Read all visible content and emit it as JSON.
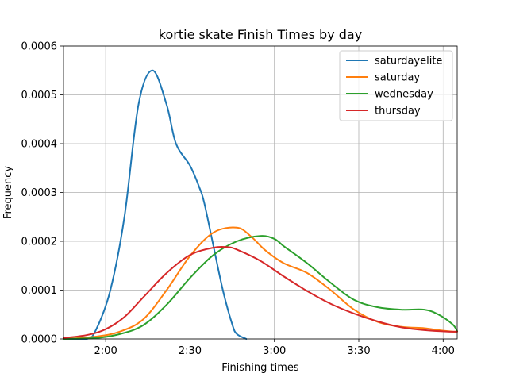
{
  "chart_data": {
    "type": "line",
    "title": "kortie skate Finish Times by day",
    "xlabel": "Finishing times",
    "ylabel": "Frequency",
    "x_unit": "seconds",
    "xlim": [
      6300,
      14700
    ],
    "ylim": [
      0,
      0.0006
    ],
    "grid": true,
    "legend_position": "upper right",
    "xticks": [
      {
        "value": 7200,
        "label": "2:00"
      },
      {
        "value": 9000,
        "label": "2:30"
      },
      {
        "value": 10800,
        "label": "3:00"
      },
      {
        "value": 12600,
        "label": "3:30"
      },
      {
        "value": 14400,
        "label": "4:00"
      }
    ],
    "yticks": [
      {
        "value": 0.0,
        "label": "0.0000"
      },
      {
        "value": 0.0001,
        "label": "0.0001"
      },
      {
        "value": 0.0002,
        "label": "0.0002"
      },
      {
        "value": 0.0003,
        "label": "0.0003"
      },
      {
        "value": 0.0004,
        "label": "0.0004"
      },
      {
        "value": 0.0005,
        "label": "0.0005"
      },
      {
        "value": 0.0006,
        "label": "0.0006"
      }
    ],
    "series": [
      {
        "name": "saturdayelite",
        "color": "#1f77b4",
        "x": [
          6300,
          6800,
          7000,
          7300,
          7600,
          7900,
          8200,
          8500,
          8700,
          9000,
          9200,
          9300,
          9500,
          9700,
          9900,
          10000,
          10200
        ],
        "y": [
          0.0,
          0.0,
          2e-05,
          0.0001,
          0.00025,
          0.00048,
          0.00055,
          0.00048,
          0.0004,
          0.000355,
          0.00031,
          0.00028,
          0.00019,
          0.0001,
          3e-05,
          1e-05,
          0.0
        ]
      },
      {
        "name": "saturday",
        "color": "#ff7f0e",
        "x": [
          6300,
          7000,
          7500,
          8000,
          8500,
          9000,
          9500,
          10000,
          10300,
          10600,
          11000,
          11500,
          12000,
          12500,
          13000,
          13500,
          14000,
          14300,
          14600,
          14700
        ],
        "y": [
          0.0,
          5e-06,
          1.5e-05,
          4e-05,
          0.0001,
          0.00017,
          0.000218,
          0.000228,
          0.00021,
          0.000182,
          0.000155,
          0.000135,
          0.0001,
          6e-05,
          3.5e-05,
          2.5e-05,
          2.2e-05,
          1.8e-05,
          1.5e-05,
          1.5e-05
        ]
      },
      {
        "name": "wednesday",
        "color": "#2ca02c",
        "x": [
          6300,
          7000,
          7500,
          8000,
          8500,
          9000,
          9500,
          10000,
          10500,
          10800,
          11000,
          11500,
          12000,
          12500,
          13000,
          13500,
          14000,
          14300,
          14600,
          14700
        ],
        "y": [
          0.0,
          2e-06,
          1e-05,
          2.8e-05,
          7e-05,
          0.000125,
          0.000172,
          0.0002,
          0.000211,
          0.000205,
          0.00019,
          0.000155,
          0.000115,
          8e-05,
          6.5e-05,
          6e-05,
          6e-05,
          5e-05,
          3e-05,
          1.6e-05
        ]
      },
      {
        "name": "thursday",
        "color": "#d62728",
        "x": [
          6300,
          6800,
          7200,
          7600,
          8000,
          8500,
          9000,
          9500,
          9800,
          10000,
          10500,
          11000,
          11500,
          12000,
          12500,
          13000,
          13500,
          14000,
          14500,
          14700
        ],
        "y": [
          2e-06,
          8e-06,
          2e-05,
          4.5e-05,
          8.5e-05,
          0.000135,
          0.000172,
          0.000187,
          0.000188,
          0.000183,
          0.00016,
          0.000128,
          9.8e-05,
          7.2e-05,
          5.2e-05,
          3.6e-05,
          2.4e-05,
          1.8e-05,
          1.5e-05,
          1.5e-05
        ]
      }
    ]
  }
}
